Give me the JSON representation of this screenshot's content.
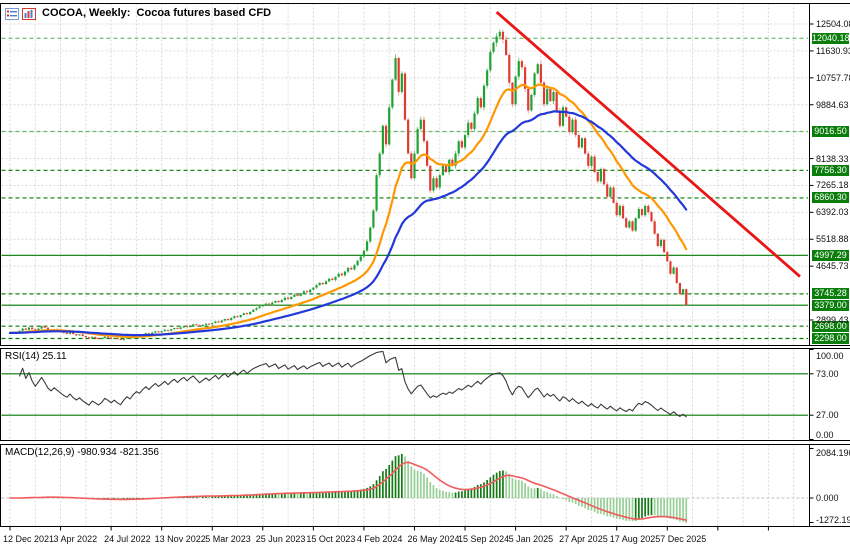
{
  "window": {
    "title": "COCOA, Weekly:  Cocoa futures based CFD",
    "icons": [
      {
        "name": "market-watch-icon"
      },
      {
        "name": "chart-window-icon"
      }
    ]
  },
  "indicators": {
    "rsi": {
      "label": "RSI(14) 25.11",
      "period": 14,
      "value": 25.11,
      "upper_level": 73,
      "lower_level": 27,
      "axis_labels": [
        "100.00",
        "73.00",
        "27.00",
        "0.00"
      ],
      "axis_values": [
        100,
        73,
        27,
        0
      ]
    },
    "macd": {
      "label": "MACD(12,26,9) -980.934 -821.356",
      "fast": 12,
      "slow": 26,
      "signal_period": 9,
      "macd_value": -980.934,
      "signal_value": -821.356,
      "axis_labels": [
        "2084.190",
        "0.000",
        "-1272.190"
      ],
      "axis_values": [
        2084.19,
        0.0,
        -1272.19
      ]
    }
  },
  "price_axis": {
    "tick_labels": [
      "12504.08",
      "11630.93",
      "10757.78",
      "9884.63",
      "8138.33",
      "7265.18",
      "6392.03",
      "5518.88",
      "4645.73",
      "2899.43"
    ],
    "tick_prices": [
      12504.08,
      11630.93,
      10757.78,
      9884.63,
      8138.33,
      7265.18,
      6392.03,
      5518.88,
      4645.73,
      2899.43
    ],
    "grid_start": 12504.08,
    "grid_step": 873.15,
    "grid_count": 12
  },
  "levels": [
    {
      "label": "12040.18",
      "price": 12040.18,
      "style": "dashed",
      "tone": "light"
    },
    {
      "label": "9016.50",
      "price": 9016.5,
      "style": "dashed",
      "tone": "light"
    },
    {
      "label": "7756.30",
      "price": 7756.3,
      "style": "dashed",
      "tone": "dark"
    },
    {
      "label": "6860.30",
      "price": 6860.3,
      "style": "dashed",
      "tone": "dark"
    },
    {
      "label": "4997.29",
      "price": 4997.29,
      "style": "solid",
      "tone": "dark"
    },
    {
      "label": "3745.28",
      "price": 3745.28,
      "style": "dashed",
      "tone": "dark"
    },
    {
      "label": "3379.00",
      "price": 3379.0,
      "style": "solid",
      "tone": "dark"
    },
    {
      "label": "2698.00",
      "price": 2698.0,
      "style": "dashed",
      "tone": "dark"
    },
    {
      "label": "2298.00",
      "price": 2298.0,
      "style": "dashed",
      "tone": "dark"
    }
  ],
  "time_axis": {
    "labels": [
      "12 Dec 2021",
      "3 Apr 2022",
      "24 Jul 2022",
      "13 Nov 2022",
      "5 Mar 2023",
      "25 Jun 2023",
      "15 Oct 2023",
      "4 Feb 2024",
      "26 May 2024",
      "15 Sep 2024",
      "5 Jan 2025",
      "27 Apr 2025",
      "17 Aug 2025",
      "7 Dec 2025"
    ]
  },
  "colors": {
    "up_body": "#1fa233",
    "down_body": "#e23a2e",
    "up_wick": "#6cc277",
    "down_wick": "#f09a93",
    "ma_fast": "#ff9800",
    "ma_slow": "#2238d8",
    "trendline": "#ea1515",
    "level_dark": "#007a00",
    "level_light": "#66b866",
    "badge_bg": "#0a7d0a",
    "rsi_line": "#3a3a3a",
    "rsi_level": "#007a00",
    "macd_rising": "#157a15",
    "macd_falling": "#96cf96",
    "macd_signal": "#f15b5b",
    "grid": "#d9d9d9",
    "panel_border": "#000000",
    "background": "#ffffff"
  },
  "chart_data": {
    "type": "candlestick",
    "symbol": "COCOA",
    "timeframe": "Weekly",
    "title": "COCOA, Weekly:  Cocoa futures based CFD",
    "x_tick_labels": [
      "12 Dec 2021",
      "3 Apr 2022",
      "24 Jul 2022",
      "13 Nov 2022",
      "5 Mar 2023",
      "25 Jun 2023",
      "15 Oct 2023",
      "4 Feb 2024",
      "26 May 2024",
      "15 Sep 2024",
      "5 Jan 2025",
      "27 Apr 2025",
      "17 Aug 2025",
      "7 Dec 2025"
    ],
    "bars_per_x_tick": 16,
    "first_open": 2450,
    "closes": [
      2480,
      2510,
      2460,
      2550,
      2620,
      2580,
      2650,
      2600,
      2560,
      2620,
      2700,
      2650,
      2580,
      2540,
      2600,
      2560,
      2520,
      2480,
      2450,
      2500,
      2440,
      2400,
      2430,
      2380,
      2340,
      2300,
      2350,
      2320,
      2280,
      2310,
      2360,
      2330,
      2290,
      2320,
      2280,
      2250,
      2300,
      2340,
      2310,
      2360,
      2400,
      2380,
      2430,
      2470,
      2440,
      2490,
      2530,
      2500,
      2540,
      2580,
      2550,
      2600,
      2640,
      2610,
      2660,
      2700,
      2670,
      2720,
      2760,
      2730,
      2700,
      2740,
      2780,
      2760,
      2800,
      2850,
      2820,
      2880,
      2930,
      2900,
      2960,
      3020,
      2990,
      3060,
      3120,
      3090,
      3160,
      3230,
      3280,
      3340,
      3380,
      3430,
      3400,
      3460,
      3520,
      3480,
      3550,
      3620,
      3580,
      3650,
      3720,
      3680,
      3760,
      3830,
      3800,
      3880,
      3950,
      4030,
      4100,
      4060,
      4150,
      4240,
      4200,
      4300,
      4400,
      4350,
      4470,
      4590,
      4540,
      4680,
      4820,
      4960,
      5150,
      5450,
      5900,
      6450,
      7600,
      8300,
      9200,
      8600,
      9800,
      10700,
      11400,
      10300,
      10900,
      9400,
      8300,
      7500,
      8300,
      9100,
      9400,
      8700,
      7900,
      7100,
      7500,
      7200,
      7600,
      7900,
      7700,
      8100,
      7900,
      8300,
      8700,
      8500,
      8900,
      9300,
      9100,
      9600,
      10100,
      9800,
      10500,
      11000,
      11600,
      11900,
      12100,
      12250,
      12000,
      11500,
      10600,
      9900,
      10800,
      11300,
      11100,
      10400,
      9700,
      10200,
      10900,
      11200,
      10600,
      9900,
      10400,
      10000,
      10300,
      9700,
      9200,
      9800,
      9500,
      9000,
      9400,
      8900,
      8500,
      8800,
      8300,
      7900,
      8200,
      7700,
      7400,
      7800,
      7300,
      6900,
      7200,
      6700,
      6300,
      6600,
      6200,
      5900,
      6100,
      5800,
      6200,
      6500,
      6300,
      6600,
      6400,
      6100,
      5700,
      5300,
      5500,
      5100,
      4800,
      4400,
      4600,
      4100,
      3745,
      3900,
      3379
    ],
    "ma_fast_period": 20,
    "ma_slow_period": 45,
    "trendline": {
      "from_bar": 154,
      "from_price": 12890,
      "to_bar": 250,
      "to_price": 4310
    },
    "price_axis_top": 12504.08,
    "price_axis_step": 873.15
  }
}
